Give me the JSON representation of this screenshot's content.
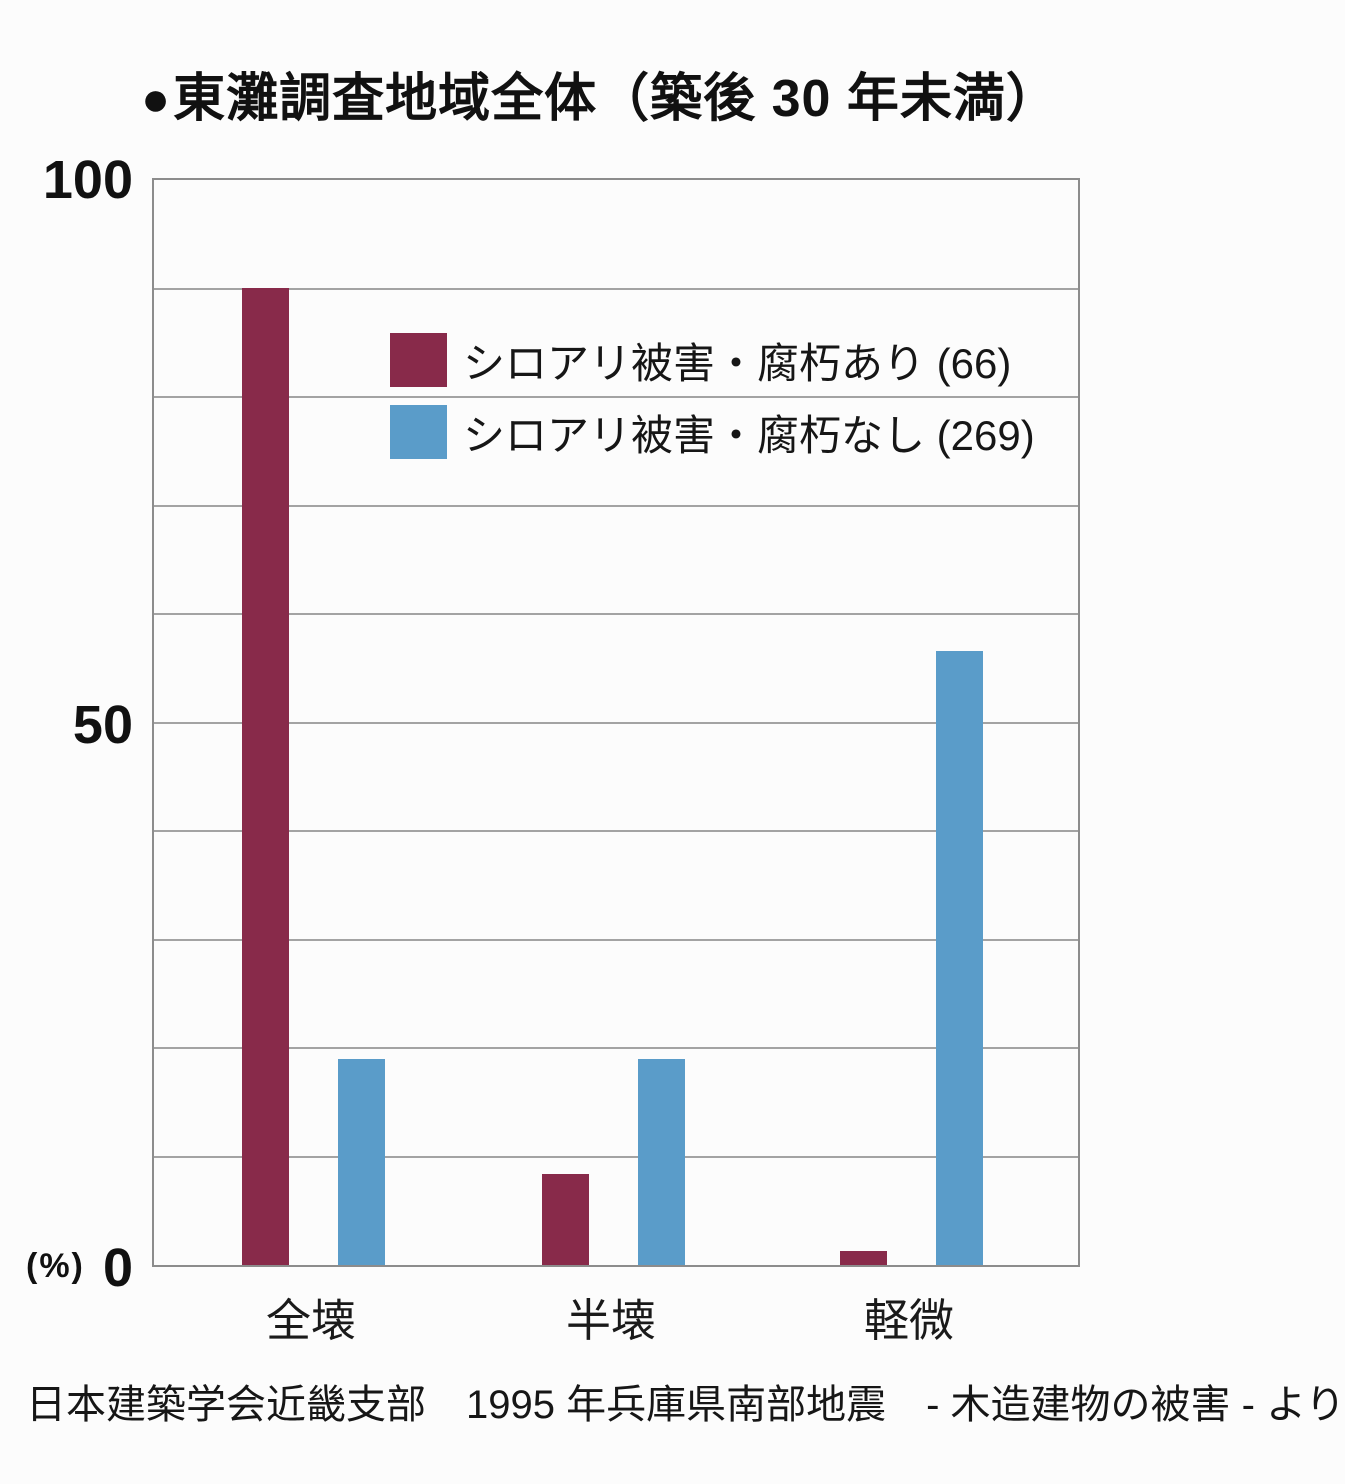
{
  "title": {
    "bullet": "●",
    "text": "東灘調査地域全体（築後 30 年未満）"
  },
  "y_axis": {
    "unit": "(%)",
    "ticks": [
      "100",
      "50",
      "0"
    ]
  },
  "legend": [
    {
      "label": "シロアリ被害・腐朽あり (66)",
      "color": "#882a4a"
    },
    {
      "label": "シロアリ被害・腐朽なし (269)",
      "color": "#5a9cc9"
    }
  ],
  "source": "日本建築学会近畿支部　1995 年兵庫県南部地震　- 木造建物の被害 - より",
  "chart_data": {
    "type": "bar",
    "title": "東灘調査地域全体（築後 30 年未満）",
    "categories": [
      "全壊",
      "半壊",
      "軽微"
    ],
    "series": [
      {
        "name": "シロアリ被害・腐朽あり (66)",
        "color": "#882a4a",
        "values": [
          90,
          8.4,
          1.3
        ]
      },
      {
        "name": "シロアリ被害・腐朽なし (269)",
        "color": "#5a9cc9",
        "values": [
          19,
          19,
          56.6
        ]
      }
    ],
    "xlabel": "",
    "ylabel": "(%)",
    "ylim": [
      0,
      100
    ],
    "gridline_step": 10,
    "grid": true,
    "legend_position": "upper-center-inside"
  }
}
